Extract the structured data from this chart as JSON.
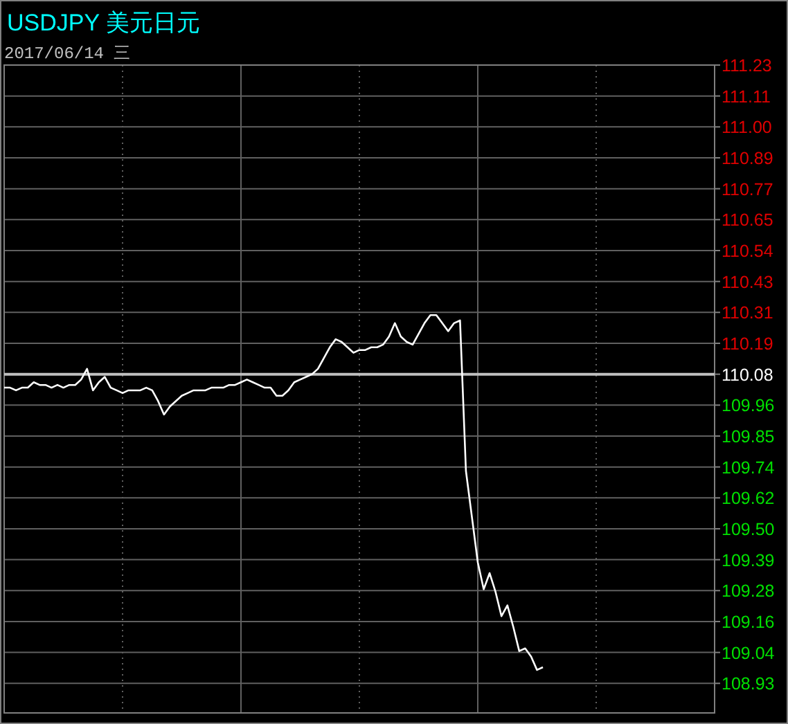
{
  "chart_data": {
    "type": "line",
    "title": "USDJPY 美元日元",
    "subtitle": "2017/06/14 三",
    "categories": [
      null,
      null,
      null,
      null,
      null,
      null,
      null,
      null,
      null,
      null,
      null,
      null,
      null,
      null,
      null,
      null,
      null,
      null,
      null,
      null,
      null,
      null,
      null,
      null,
      null,
      null,
      null,
      null,
      null,
      null,
      null,
      null,
      null,
      null,
      null,
      null,
      null,
      null,
      null,
      null,
      null,
      null,
      null,
      null,
      null,
      null,
      null,
      null,
      null,
      null,
      null,
      null,
      null,
      null,
      null,
      null,
      null,
      null,
      null,
      null,
      null,
      null,
      null,
      null,
      null,
      null,
      null,
      null,
      null,
      null,
      null,
      null,
      null,
      null,
      null,
      null,
      null,
      null,
      null,
      null,
      null,
      null,
      null,
      null,
      null,
      null,
      null,
      null,
      null,
      null,
      null,
      null,
      null,
      null,
      null,
      null,
      null,
      null,
      null,
      null,
      null,
      null,
      null,
      null,
      null,
      null,
      null,
      null,
      null,
      null,
      null,
      null,
      null,
      null,
      null,
      null,
      null,
      null,
      null,
      null
    ],
    "series": [
      {
        "color": "#ffffff",
        "values": [
          110.03,
          110.03,
          110.02,
          110.03,
          110.03,
          110.05,
          110.04,
          110.04,
          110.03,
          110.04,
          110.03,
          110.04,
          110.04,
          110.06,
          110.1,
          110.02,
          110.05,
          110.07,
          110.03,
          110.02,
          110.01,
          110.02,
          110.02,
          110.02,
          110.03,
          110.02,
          109.98,
          109.93,
          109.96,
          109.98,
          110.0,
          110.01,
          110.02,
          110.02,
          110.02,
          110.03,
          110.03,
          110.03,
          110.04,
          110.04,
          110.05,
          110.06,
          110.05,
          110.04,
          110.03,
          110.03,
          110.0,
          110.0,
          110.02,
          110.05,
          110.06,
          110.07,
          110.08,
          110.1,
          110.14,
          110.18,
          110.21,
          110.2,
          110.18,
          110.16,
          110.17,
          110.17,
          110.18,
          110.18,
          110.19,
          110.22,
          110.27,
          110.22,
          110.2,
          110.19,
          110.23,
          110.27,
          110.3,
          110.3,
          110.27,
          110.24,
          110.27,
          110.28,
          109.72,
          109.55,
          109.38,
          109.28,
          109.34,
          109.27,
          109.18,
          109.22,
          109.14,
          109.05,
          109.06,
          109.03,
          108.98,
          108.99,
          null,
          null,
          null,
          null,
          null,
          null,
          null,
          null,
          null,
          null,
          null,
          null,
          null,
          null,
          null,
          null,
          null,
          null,
          null,
          null,
          null,
          null,
          null,
          null,
          null,
          null,
          null,
          null
        ]
      }
    ],
    "ylim": [
      108.82,
      111.23
    ],
    "yticks": [
      {
        "value": 111.23,
        "label": "111.23"
      },
      {
        "value": 111.115,
        "label": "111.11"
      },
      {
        "value": 111.0,
        "label": "111.00"
      },
      {
        "value": 110.885,
        "label": "110.89"
      },
      {
        "value": 110.77,
        "label": "110.77"
      },
      {
        "value": 110.655,
        "label": "110.65"
      },
      {
        "value": 110.54,
        "label": "110.54"
      },
      {
        "value": 110.425,
        "label": "110.43"
      },
      {
        "value": 110.31,
        "label": "110.31"
      },
      {
        "value": 110.195,
        "label": "110.19"
      },
      {
        "value": 110.08,
        "label": "110.08"
      },
      {
        "value": 109.965,
        "label": "109.96"
      },
      {
        "value": 109.85,
        "label": "109.85"
      },
      {
        "value": 109.735,
        "label": "109.74"
      },
      {
        "value": 109.62,
        "label": "109.62"
      },
      {
        "value": 109.505,
        "label": "109.50"
      },
      {
        "value": 109.39,
        "label": "109.39"
      },
      {
        "value": 109.275,
        "label": "109.28"
      },
      {
        "value": 109.16,
        "label": "109.16"
      },
      {
        "value": 109.045,
        "label": "109.04"
      },
      {
        "value": 108.93,
        "label": "108.93"
      }
    ],
    "ref_lines": [
      {
        "axis": "y",
        "value": 110.08,
        "color": "#c0c0c0"
      }
    ],
    "grid": true,
    "tick_labels": "y",
    "marker": "none",
    "line_style": "solid"
  }
}
